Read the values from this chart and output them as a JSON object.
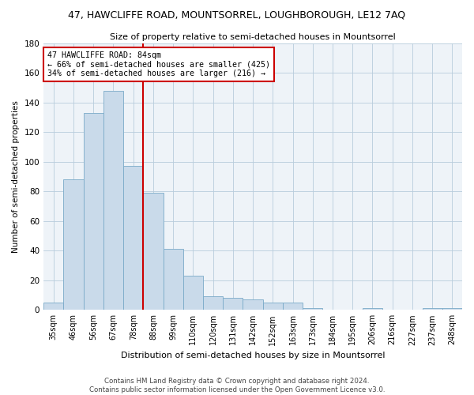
{
  "title": "47, HAWCLIFFE ROAD, MOUNTSORREL, LOUGHBOROUGH, LE12 7AQ",
  "subtitle": "Size of property relative to semi-detached houses in Mountsorrel",
  "xlabel": "Distribution of semi-detached houses by size in Mountsorrel",
  "ylabel": "Number of semi-detached properties",
  "bar_color": "#c9daea",
  "bar_edge_color": "#7aaac8",
  "grid_color": "#b8ccdc",
  "background_color": "#eef3f8",
  "annotation_box_color": "#cc0000",
  "vline_color": "#cc0000",
  "bins": [
    "35sqm",
    "46sqm",
    "56sqm",
    "67sqm",
    "78sqm",
    "88sqm",
    "99sqm",
    "110sqm",
    "120sqm",
    "131sqm",
    "142sqm",
    "152sqm",
    "163sqm",
    "173sqm",
    "184sqm",
    "195sqm",
    "206sqm",
    "216sqm",
    "227sqm",
    "237sqm",
    "248sqm"
  ],
  "counts": [
    5,
    88,
    133,
    148,
    97,
    79,
    41,
    23,
    9,
    8,
    7,
    5,
    5,
    1,
    0,
    0,
    1,
    0,
    0,
    1,
    1
  ],
  "vline_x": 4.5,
  "annotation_text": "47 HAWCLIFFE ROAD: 84sqm\n← 66% of semi-detached houses are smaller (425)\n34% of semi-detached houses are larger (216) →",
  "ylim": [
    0,
    180
  ],
  "yticks": [
    0,
    20,
    40,
    60,
    80,
    100,
    120,
    140,
    160,
    180
  ],
  "footer_line1": "Contains HM Land Registry data © Crown copyright and database right 2024.",
  "footer_line2": "Contains public sector information licensed under the Open Government Licence v3.0."
}
